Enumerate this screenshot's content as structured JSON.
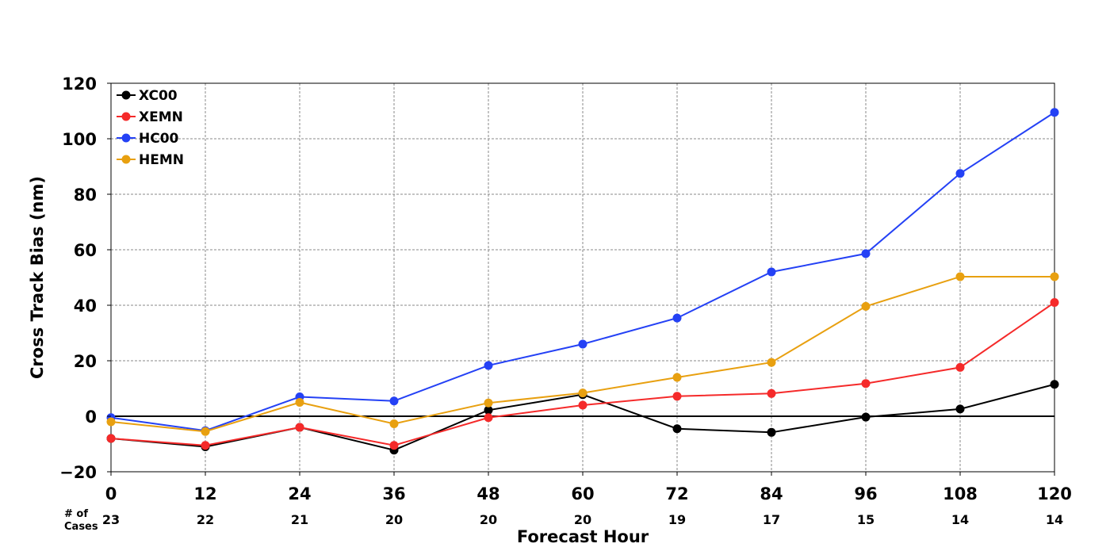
{
  "chart_data": {
    "type": "line",
    "x": [
      0,
      12,
      24,
      36,
      48,
      60,
      72,
      84,
      96,
      108,
      120
    ],
    "xlim": [
      0,
      120
    ],
    "ylim": [
      -20,
      120
    ],
    "y_ticks": [
      -20,
      0,
      20,
      40,
      60,
      80,
      100,
      120
    ],
    "x_tick_labels": [
      "0",
      "12",
      "24",
      "36",
      "48",
      "60",
      "72",
      "84",
      "96",
      "108",
      "120"
    ],
    "y_tick_labels": [
      "−20",
      "0",
      "20",
      "40",
      "60",
      "80",
      "100",
      "120"
    ],
    "xlabel": "Forecast Hour",
    "ylabel": "Cross Track Bias (nm)",
    "grid": true,
    "zero_line": true,
    "legend_position": "top-left",
    "cases_label": [
      "# of",
      "Cases"
    ],
    "cases": [
      "23",
      "22",
      "21",
      "20",
      "20",
      "20",
      "19",
      "17",
      "15",
      "14",
      "14"
    ],
    "series": [
      {
        "name": "XC00",
        "color": "#000000",
        "values": [
          -8,
          -11,
          -4,
          -12.2,
          2.2,
          7.8,
          -4.5,
          -5.8,
          -0.3,
          2.6,
          11.5
        ]
      },
      {
        "name": "XEMN",
        "color": "#f52a2a",
        "values": [
          -8,
          -10.5,
          -4,
          -10.5,
          -0.5,
          4,
          7.2,
          8.2,
          11.8,
          17.6,
          41
        ]
      },
      {
        "name": "HC00",
        "color": "#2441f5",
        "values": [
          -0.5,
          -5.2,
          7,
          5.5,
          18.3,
          26,
          35.4,
          52,
          58.6,
          87.5,
          109.5
        ]
      },
      {
        "name": "HEMN",
        "color": "#e8a010",
        "values": [
          -2,
          -5.5,
          5,
          -2.7,
          4.8,
          8.4,
          14,
          19.4,
          39.6,
          50.3,
          50.3
        ]
      }
    ]
  }
}
